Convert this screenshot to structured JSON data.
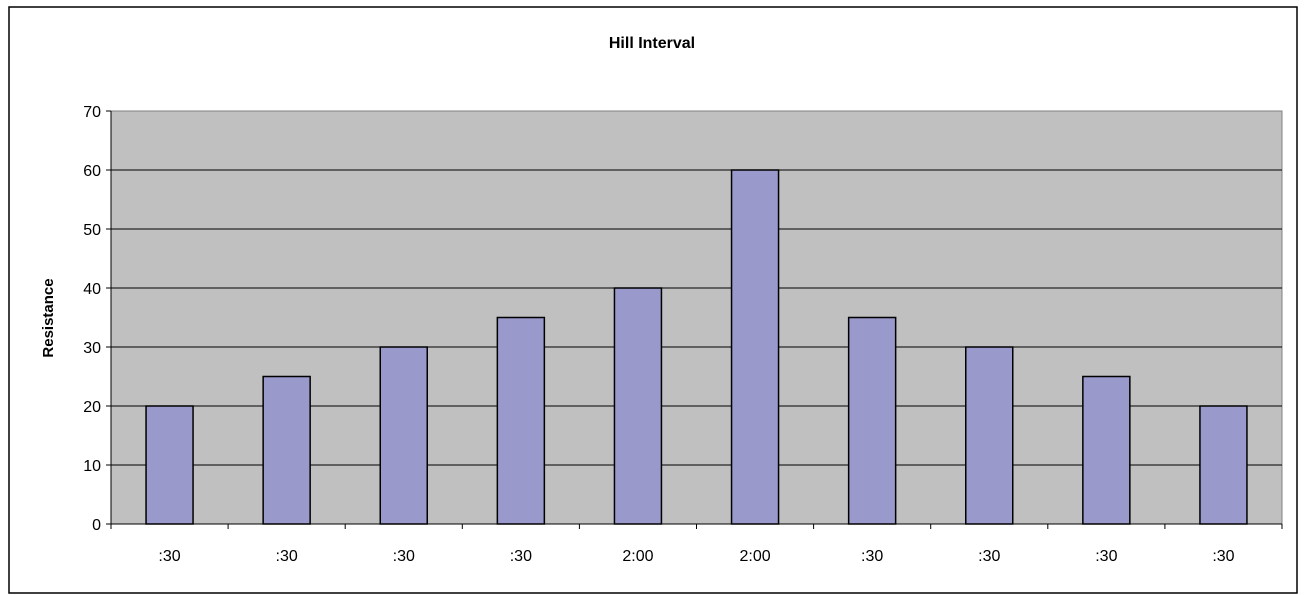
{
  "chart_data": {
    "type": "bar",
    "title": "Hill Interval",
    "xlabel": "",
    "ylabel": "Resistance",
    "categories": [
      ":30",
      ":30",
      ":30",
      ":30",
      "2:00",
      "2:00",
      ":30",
      ":30",
      ":30",
      ":30"
    ],
    "values": [
      20,
      25,
      30,
      35,
      40,
      60,
      35,
      30,
      25,
      20
    ],
    "ylim": [
      0,
      70
    ],
    "yticks": [
      0,
      10,
      20,
      30,
      40,
      50,
      60,
      70
    ],
    "grid": true,
    "legend": "none",
    "colors": {
      "bar": "#9999cc",
      "plot_background": "#c0c0c0",
      "bar_border": "#000000"
    }
  }
}
